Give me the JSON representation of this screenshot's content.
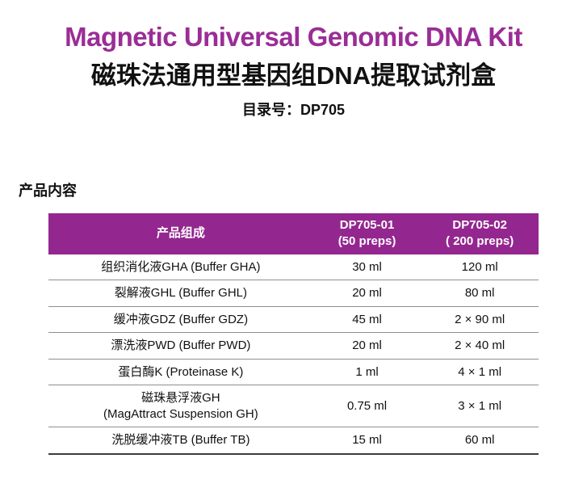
{
  "header": {
    "title_en": "Magnetic Universal Genomic DNA Kit",
    "title_zh": "磁珠法通用型基因组DNA提取试剂盒",
    "catalog_label": "目录号：",
    "catalog_number": "DP705"
  },
  "section": {
    "heading": "产品内容"
  },
  "table": {
    "columns": [
      {
        "label": "产品组成",
        "sublabel": ""
      },
      {
        "label": "DP705-01",
        "sublabel": "(50 preps)"
      },
      {
        "label": "DP705-02",
        "sublabel": "( 200 preps)"
      }
    ],
    "rows": [
      {
        "name": "组织消化液GHA (Buffer GHA)",
        "name_line2": "",
        "qty1": "30 ml",
        "qty2": "120 ml"
      },
      {
        "name": "裂解液GHL (Buffer GHL)",
        "name_line2": "",
        "qty1": "20 ml",
        "qty2": "80 ml"
      },
      {
        "name": "缓冲液GDZ (Buffer GDZ)",
        "name_line2": "",
        "qty1": "45 ml",
        "qty2": "2 × 90 ml"
      },
      {
        "name": "漂洗液PWD (Buffer PWD)",
        "name_line2": "",
        "qty1": "20 ml",
        "qty2": "2 × 40 ml"
      },
      {
        "name": "蛋白酶K (Proteinase K)",
        "name_line2": "",
        "qty1": "1 ml",
        "qty2": "4 × 1 ml"
      },
      {
        "name": "磁珠悬浮液GH",
        "name_line2": "(MagAttract Suspension GH)",
        "qty1": "0.75 ml",
        "qty2": "3 × 1 ml"
      },
      {
        "name": "洗脱缓冲液TB (Buffer TB)",
        "name_line2": "",
        "qty1": "15 ml",
        "qty2": "60 ml"
      }
    ]
  },
  "colors": {
    "title_accent": "#9A2D96",
    "table_header_bg": "#93278F",
    "header_text": "#FFFFFF"
  }
}
